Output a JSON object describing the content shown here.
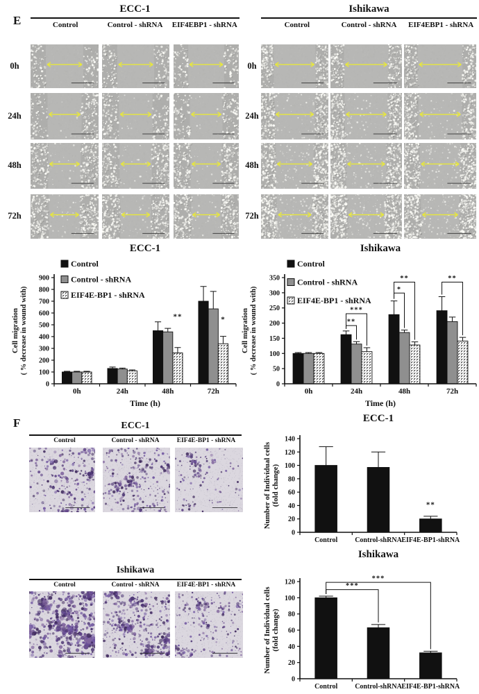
{
  "panel_e": {
    "label": "E",
    "ecc1": {
      "title": "ECC-1",
      "columns": [
        "Control",
        "Control - shRNA",
        "EIF4EBP1 - shRNA"
      ]
    },
    "ishikawa": {
      "title": "Ishikawa",
      "columns": [
        "Control",
        "Control - shRNA",
        "EIF4EBP1 - shRNA"
      ]
    },
    "row_labels": [
      "0h",
      "24h",
      "48h",
      "72h"
    ]
  },
  "panel_f": {
    "label": "F",
    "ecc1": {
      "title": "ECC-1",
      "columns": [
        "Control",
        "Control - shRNA",
        "EIF4E-BP1 - shRNA"
      ]
    },
    "ishikawa": {
      "title": "Ishikawa",
      "columns": [
        "Control",
        "Control - shRNA",
        "EIF4E-BP1 - shRNA"
      ]
    }
  },
  "chart_data": [
    {
      "type": "bar",
      "title": "ECC-1",
      "xlabel": "Time (h)",
      "ylabel_lines": [
        "Cell migration",
        "( % decrease in wound with)"
      ],
      "categories": [
        "0h",
        "24h",
        "48h",
        "72h"
      ],
      "ylim": [
        0,
        900
      ],
      "ystep": 100,
      "grid": false,
      "legend_position": "top-left",
      "series": [
        {
          "name": "Control",
          "fill": "black",
          "values": [
            100,
            130,
            450,
            700
          ],
          "errors": [
            6,
            12,
            75,
            125
          ]
        },
        {
          "name": "Control - shRNA",
          "fill": "gray",
          "values": [
            100,
            125,
            440,
            635
          ],
          "errors": [
            6,
            8,
            30,
            148
          ]
        },
        {
          "name": "EIF4E-BP1 - shRNA",
          "fill": "hatch",
          "values": [
            100,
            110,
            262,
            340
          ],
          "errors": [
            6,
            8,
            45,
            62
          ]
        }
      ],
      "annotations": [
        {
          "at": [
            2,
            2
          ],
          "y": 549,
          "text": "**"
        },
        {
          "at": [
            3,
            2
          ],
          "y": 526,
          "text": "*"
        }
      ]
    },
    {
      "type": "bar",
      "title": "Ishikawa",
      "xlabel": "Time (h)",
      "ylabel_lines": [
        "Cell migration",
        "( % decrease in wound with)"
      ],
      "categories": [
        "0h",
        "24h",
        "48h",
        "72h"
      ],
      "ylim": [
        0,
        350
      ],
      "ystep": 50,
      "grid": false,
      "legend_position": "top-left",
      "series": [
        {
          "name": "Control",
          "fill": "black",
          "values": [
            100,
            162,
            228,
            241
          ],
          "errors": [
            3,
            12,
            45,
            46
          ]
        },
        {
          "name": "Control - shRNA",
          "fill": "gray",
          "values": [
            100,
            131,
            169,
            205
          ],
          "errors": [
            3,
            8,
            8,
            15
          ]
        },
        {
          "name": "EIF4E-BP1 - shRNA",
          "fill": "hatch",
          "values": [
            100,
            106,
            128,
            141
          ],
          "errors": [
            3,
            13,
            10,
            12
          ]
        }
      ],
      "brackets": [
        {
          "a": [
            1,
            0
          ],
          "b": [
            1,
            1
          ],
          "y": 192,
          "text": "**"
        },
        {
          "a": [
            1,
            0
          ],
          "b": [
            1,
            2
          ],
          "y": 231,
          "text": "***"
        },
        {
          "a": [
            2,
            0
          ],
          "b": [
            2,
            1
          ],
          "y": 299,
          "text": "*"
        },
        {
          "a": [
            2,
            0
          ],
          "b": [
            2,
            2
          ],
          "y": 335,
          "text": "**"
        },
        {
          "a": [
            3,
            0
          ],
          "b": [
            3,
            2
          ],
          "y": 335,
          "text": "**"
        }
      ]
    },
    {
      "type": "bar",
      "title": "ECC-1",
      "xlabel": "",
      "ylabel_lines": [
        "Number of Individual cells",
        "(fold change)"
      ],
      "categories": [
        "Control",
        "Control-shRNA",
        "EIF4E-BP1-shRNA"
      ],
      "ylim": [
        0,
        140
      ],
      "ystep": 20,
      "grid": false,
      "series": [
        {
          "name": "",
          "fill": "black",
          "values": [
            100,
            97,
            20
          ],
          "errors": [
            28,
            23,
            4
          ]
        }
      ],
      "annotations": [
        {
          "at": [
            2,
            0
          ],
          "y": 38,
          "text": "**"
        }
      ]
    },
    {
      "type": "bar",
      "title": "Ishikawa",
      "xlabel": "",
      "ylabel_lines": [
        "Number of Individual cells",
        "(fold change)"
      ],
      "categories": [
        "Control",
        "Control-shRNA",
        "EIF4E-BP1-shRNA"
      ],
      "ylim": [
        0,
        120
      ],
      "ystep": 20,
      "grid": false,
      "series": [
        {
          "name": "",
          "fill": "black",
          "values": [
            100,
            63,
            32
          ],
          "errors": [
            2,
            4,
            2
          ]
        }
      ],
      "brackets": [
        {
          "a": [
            0,
            0
          ],
          "b": [
            1,
            0
          ],
          "y": 110,
          "text": "***"
        },
        {
          "a": [
            0,
            0
          ],
          "b": [
            2,
            0
          ],
          "y": 119,
          "text": "***"
        }
      ]
    }
  ],
  "colors": {
    "bar_black": "#111111",
    "bar_gray": "#8f8f8f",
    "hatch_line": "#222222",
    "arrow_yellow": "#e7e73c",
    "wound_bg": "#b7b7b5",
    "transwell_bg": "#dbd7df",
    "stain_purple": "#5e4287"
  },
  "wound_images": {
    "ecc1_gaps": [
      0.55,
      0.5,
      0.48,
      0.46
    ],
    "ishikawa_gaps": [
      0.62,
      0.6,
      0.56,
      0.53
    ],
    "ecc1_density": [
      150,
      190,
      280,
      340
    ],
    "ishikawa_density": [
      230,
      300,
      380,
      450
    ],
    "ecc1_stray": [
      0,
      10,
      22,
      32
    ],
    "ishikawa_stray": [
      0,
      50,
      75,
      95
    ]
  },
  "transwell_images": {
    "ecc1": [
      {
        "dots": 270,
        "rmul": 1.0
      },
      {
        "dots": 320,
        "rmul": 0.9
      },
      {
        "dots": 150,
        "rmul": 0.85
      }
    ],
    "ishikawa": [
      {
        "dots": 540,
        "rmul": 1.3
      },
      {
        "dots": 450,
        "rmul": 1.05
      },
      {
        "dots": 235,
        "rmul": 0.9
      }
    ]
  }
}
